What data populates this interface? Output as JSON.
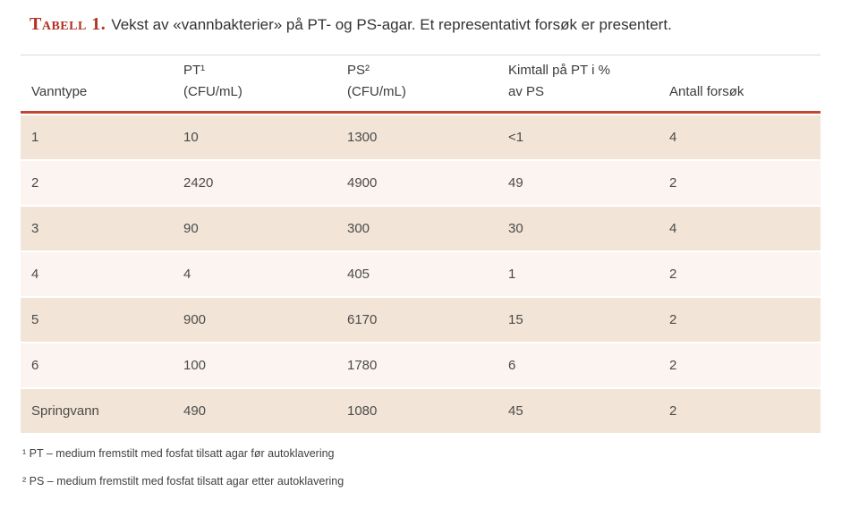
{
  "title": {
    "label": "Tabell 1.",
    "text": "Vekst av «vannbakterier» på PT- og PS-agar. Et representativt forsøk er presentert."
  },
  "table": {
    "headers": [
      {
        "line1": "",
        "line2": "Vanntype"
      },
      {
        "line1": "PT¹",
        "line2": "(CFU/mL)"
      },
      {
        "line1": "PS²",
        "line2": "(CFU/mL)"
      },
      {
        "line1": "Kimtall på PT i %",
        "line2": "av PS"
      },
      {
        "line1": "",
        "line2": "Antall forsøk"
      }
    ],
    "rows": [
      {
        "cells": [
          "1",
          "10",
          "1300",
          "<1",
          "4"
        ]
      },
      {
        "cells": [
          "2",
          "2420",
          "4900",
          "49",
          "2"
        ]
      },
      {
        "cells": [
          "3",
          "90",
          "300",
          "30",
          "4"
        ]
      },
      {
        "cells": [
          "4",
          "4",
          "405",
          "1",
          "2"
        ]
      },
      {
        "cells": [
          "5",
          "900",
          "6170",
          "15",
          "2"
        ]
      },
      {
        "cells": [
          "6",
          "100",
          "1780",
          "6",
          "2"
        ]
      },
      {
        "cells": [
          "Springvann",
          "490",
          "1080",
          "45",
          "2"
        ]
      }
    ]
  },
  "footnotes": [
    "¹ PT – medium fremstilt med fosfat tilsatt agar før autoklavering",
    "² PS – medium fremstilt med fosfat tilsatt agar etter autoklavering"
  ],
  "colors": {
    "accent_red": "#b23122",
    "rule_red": "#c24634",
    "top_rule_gray": "#d9d9d9",
    "row_beige": "#f2e5d7",
    "row_light": "#fbf4f0"
  }
}
